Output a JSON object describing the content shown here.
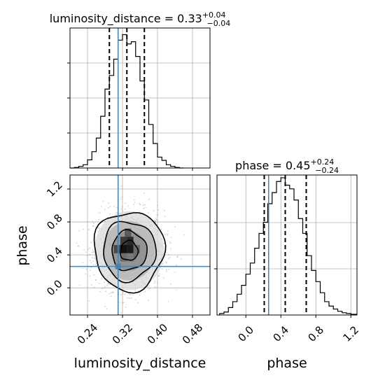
{
  "chart_data": {
    "type": "corner",
    "parameters": [
      "luminosity_distance",
      "phase"
    ],
    "truth": {
      "luminosity_distance": 0.31,
      "phase": 0.26
    },
    "colors": {
      "truth": "#4682b4",
      "hist": "#000000",
      "grid": "#b0b0b0"
    },
    "grid": true,
    "panels": [
      {
        "name": "luminosity_distance-marginal",
        "type": "histogram",
        "title": "luminosity_distance = 0.33",
        "title_sup": "+0.04",
        "title_sub": "−0.04",
        "xlim": [
          0.2,
          0.52
        ],
        "quantiles": [
          0.29,
          0.33,
          0.37
        ],
        "bins": [
          {
            "x0": 0.2,
            "x1": 0.21,
            "count": 0
          },
          {
            "x0": 0.21,
            "x1": 0.22,
            "count": 1
          },
          {
            "x0": 0.22,
            "x1": 0.23,
            "count": 3
          },
          {
            "x0": 0.23,
            "x1": 0.24,
            "count": 6
          },
          {
            "x0": 0.24,
            "x1": 0.25,
            "count": 15
          },
          {
            "x0": 0.25,
            "x1": 0.26,
            "count": 30
          },
          {
            "x0": 0.26,
            "x1": 0.27,
            "count": 55
          },
          {
            "x0": 0.27,
            "x1": 0.28,
            "count": 95
          },
          {
            "x0": 0.28,
            "x1": 0.29,
            "count": 145
          },
          {
            "x0": 0.29,
            "x1": 0.3,
            "count": 170
          },
          {
            "x0": 0.3,
            "x1": 0.31,
            "count": 200
          },
          {
            "x0": 0.31,
            "x1": 0.32,
            "count": 235
          },
          {
            "x0": 0.32,
            "x1": 0.33,
            "count": 245
          },
          {
            "x0": 0.33,
            "x1": 0.34,
            "count": 228
          },
          {
            "x0": 0.34,
            "x1": 0.35,
            "count": 232
          },
          {
            "x0": 0.35,
            "x1": 0.36,
            "count": 205
          },
          {
            "x0": 0.36,
            "x1": 0.37,
            "count": 160
          },
          {
            "x0": 0.37,
            "x1": 0.38,
            "count": 125
          },
          {
            "x0": 0.38,
            "x1": 0.39,
            "count": 80
          },
          {
            "x0": 0.39,
            "x1": 0.4,
            "count": 45
          },
          {
            "x0": 0.4,
            "x1": 0.41,
            "count": 20
          },
          {
            "x0": 0.41,
            "x1": 0.42,
            "count": 14
          },
          {
            "x0": 0.42,
            "x1": 0.43,
            "count": 6
          },
          {
            "x0": 0.43,
            "x1": 0.44,
            "count": 3
          },
          {
            "x0": 0.44,
            "x1": 0.45,
            "count": 1
          },
          {
            "x0": 0.45,
            "x1": 0.46,
            "count": 0
          }
        ]
      },
      {
        "name": "phase-marginal",
        "type": "histogram",
        "title": "phase = 0.45",
        "title_sup": "+0.24",
        "title_sub": "−0.24",
        "xlim": [
          -0.33,
          1.27
        ],
        "quantiles": [
          0.21,
          0.45,
          0.69
        ],
        "bins": [
          {
            "x0": -0.3,
            "x1": -0.25,
            "count": 2
          },
          {
            "x0": -0.25,
            "x1": -0.2,
            "count": 4
          },
          {
            "x0": -0.2,
            "x1": -0.15,
            "count": 10
          },
          {
            "x0": -0.15,
            "x1": -0.1,
            "count": 18
          },
          {
            "x0": -0.1,
            "x1": -0.05,
            "count": 28
          },
          {
            "x0": -0.05,
            "x1": 0.0,
            "count": 40
          },
          {
            "x0": 0.0,
            "x1": 0.05,
            "count": 55
          },
          {
            "x0": 0.05,
            "x1": 0.1,
            "count": 70
          },
          {
            "x0": 0.1,
            "x1": 0.15,
            "count": 90
          },
          {
            "x0": 0.15,
            "x1": 0.2,
            "count": 110
          },
          {
            "x0": 0.2,
            "x1": 0.25,
            "count": 125
          },
          {
            "x0": 0.25,
            "x1": 0.3,
            "count": 150
          },
          {
            "x0": 0.3,
            "x1": 0.35,
            "count": 165
          },
          {
            "x0": 0.35,
            "x1": 0.4,
            "count": 180
          },
          {
            "x0": 0.4,
            "x1": 0.45,
            "count": 185
          },
          {
            "x0": 0.45,
            "x1": 0.5,
            "count": 175
          },
          {
            "x0": 0.5,
            "x1": 0.55,
            "count": 170
          },
          {
            "x0": 0.55,
            "x1": 0.6,
            "count": 155
          },
          {
            "x0": 0.6,
            "x1": 0.65,
            "count": 130
          },
          {
            "x0": 0.65,
            "x1": 0.7,
            "count": 110
          },
          {
            "x0": 0.7,
            "x1": 0.75,
            "count": 80
          },
          {
            "x0": 0.75,
            "x1": 0.8,
            "count": 60
          },
          {
            "x0": 0.8,
            "x1": 0.85,
            "count": 45
          },
          {
            "x0": 0.85,
            "x1": 0.9,
            "count": 30
          },
          {
            "x0": 0.9,
            "x1": 0.95,
            "count": 18
          },
          {
            "x0": 0.95,
            "x1": 1.0,
            "count": 12
          },
          {
            "x0": 1.0,
            "x1": 1.05,
            "count": 8
          },
          {
            "x0": 1.05,
            "x1": 1.1,
            "count": 5
          },
          {
            "x0": 1.1,
            "x1": 1.15,
            "count": 3
          },
          {
            "x0": 1.15,
            "x1": 1.2,
            "count": 2
          },
          {
            "x0": 1.2,
            "x1": 1.27,
            "count": 1
          }
        ]
      },
      {
        "name": "joint",
        "type": "2d-density",
        "xlim": [
          0.2,
          0.52
        ],
        "ylim": [
          -0.33,
          1.37
        ],
        "density_center": [
          0.335,
          0.45
        ],
        "density_spread": [
          0.04,
          0.24
        ],
        "contour_levels_sigma": [
          0.5,
          1.0,
          1.5,
          2.0
        ],
        "dense_cells": [
          {
            "x0": 0.325,
            "x1": 0.34,
            "y0": 0.62,
            "y1": 0.72,
            "shade": "#5a5a5a"
          },
          {
            "x0": 0.315,
            "x1": 0.33,
            "y0": 0.52,
            "y1": 0.62,
            "shade": "#3a3a3a"
          },
          {
            "x0": 0.33,
            "x1": 0.345,
            "y0": 0.52,
            "y1": 0.62,
            "shade": "#2a2a2a"
          },
          {
            "x0": 0.3,
            "x1": 0.315,
            "y0": 0.42,
            "y1": 0.52,
            "shade": "#4a4a4a"
          },
          {
            "x0": 0.315,
            "x1": 0.33,
            "y0": 0.42,
            "y1": 0.52,
            "shade": "#111111"
          },
          {
            "x0": 0.33,
            "x1": 0.345,
            "y0": 0.42,
            "y1": 0.52,
            "shade": "#1a1a1a"
          },
          {
            "x0": 0.345,
            "x1": 0.36,
            "y0": 0.42,
            "y1": 0.52,
            "shade": "#6a6a6a"
          },
          {
            "x0": 0.315,
            "x1": 0.33,
            "y0": 0.32,
            "y1": 0.42,
            "shade": "#6e6e6e"
          },
          {
            "x0": 0.33,
            "x1": 0.345,
            "y0": 0.32,
            "y1": 0.42,
            "shade": "#7a7a7a"
          }
        ]
      }
    ],
    "axes": {
      "luminosity_distance": {
        "label": "luminosity_distance",
        "ticks": [
          0.24,
          0.32,
          0.4,
          0.48
        ],
        "tick_labels": [
          "0.24",
          "0.32",
          "0.40",
          "0.48"
        ]
      },
      "phase_y": {
        "label": "phase",
        "ticks": [
          0.0,
          0.4,
          0.8,
          1.2
        ],
        "tick_labels": [
          "0.0",
          "0.4",
          "0.8",
          "1.2"
        ]
      },
      "phase_x": {
        "label": "phase",
        "ticks": [
          0.0,
          0.4,
          0.8,
          1.2
        ],
        "tick_labels": [
          "0.0",
          "0.4",
          "0.8",
          "1.2"
        ]
      }
    }
  }
}
